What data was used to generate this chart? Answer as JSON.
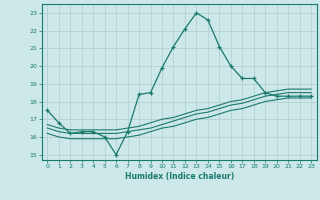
{
  "xlabel": "Humidex (Indice chaleur)",
  "background_color": "#cce8e8",
  "grid_color": "#b8d4d4",
  "line_color": "#1a7a6e",
  "xlim": [
    -0.5,
    23.5
  ],
  "ylim": [
    14.7,
    23.5
  ],
  "xticks": [
    0,
    1,
    2,
    3,
    4,
    5,
    6,
    7,
    8,
    9,
    10,
    11,
    12,
    13,
    14,
    15,
    16,
    17,
    18,
    19,
    20,
    21,
    22,
    23
  ],
  "yticks": [
    15,
    16,
    17,
    18,
    19,
    20,
    21,
    22,
    23
  ],
  "series1_x": [
    0,
    1,
    2,
    3,
    4,
    5,
    6,
    7,
    8,
    9,
    10,
    11,
    12,
    13,
    14,
    15,
    16,
    17,
    18,
    19,
    20,
    21,
    22,
    23
  ],
  "series1_y": [
    17.5,
    16.8,
    16.2,
    16.3,
    16.3,
    16.0,
    15.0,
    16.3,
    18.4,
    18.5,
    19.9,
    21.1,
    22.1,
    23.0,
    22.6,
    21.1,
    20.0,
    19.3,
    19.3,
    18.5,
    18.3,
    18.3,
    18.3,
    18.3
  ],
  "series2_x": [
    0,
    1,
    2,
    3,
    4,
    5,
    6,
    7,
    8,
    9,
    10,
    11,
    12,
    13,
    14,
    15,
    16,
    17,
    18,
    19,
    20,
    21,
    22,
    23
  ],
  "series2_y": [
    16.5,
    16.3,
    16.2,
    16.2,
    16.2,
    16.2,
    16.2,
    16.3,
    16.4,
    16.5,
    16.7,
    16.9,
    17.1,
    17.3,
    17.4,
    17.6,
    17.8,
    17.9,
    18.1,
    18.3,
    18.4,
    18.5,
    18.5,
    18.5
  ],
  "series3_x": [
    0,
    1,
    2,
    3,
    4,
    5,
    6,
    7,
    8,
    9,
    10,
    11,
    12,
    13,
    14,
    15,
    16,
    17,
    18,
    19,
    20,
    21,
    22,
    23
  ],
  "series3_y": [
    16.2,
    16.0,
    15.9,
    15.9,
    15.9,
    15.9,
    15.9,
    16.0,
    16.1,
    16.3,
    16.5,
    16.6,
    16.8,
    17.0,
    17.1,
    17.3,
    17.5,
    17.6,
    17.8,
    18.0,
    18.1,
    18.2,
    18.2,
    18.2
  ],
  "series4_x": [
    0,
    1,
    2,
    3,
    4,
    5,
    6,
    7,
    8,
    9,
    10,
    11,
    12,
    13,
    14,
    15,
    16,
    17,
    18,
    19,
    20,
    21,
    22,
    23
  ],
  "series4_y": [
    16.7,
    16.5,
    16.4,
    16.4,
    16.4,
    16.4,
    16.4,
    16.5,
    16.6,
    16.8,
    17.0,
    17.1,
    17.3,
    17.5,
    17.6,
    17.8,
    18.0,
    18.1,
    18.3,
    18.5,
    18.6,
    18.7,
    18.7,
    18.7
  ]
}
